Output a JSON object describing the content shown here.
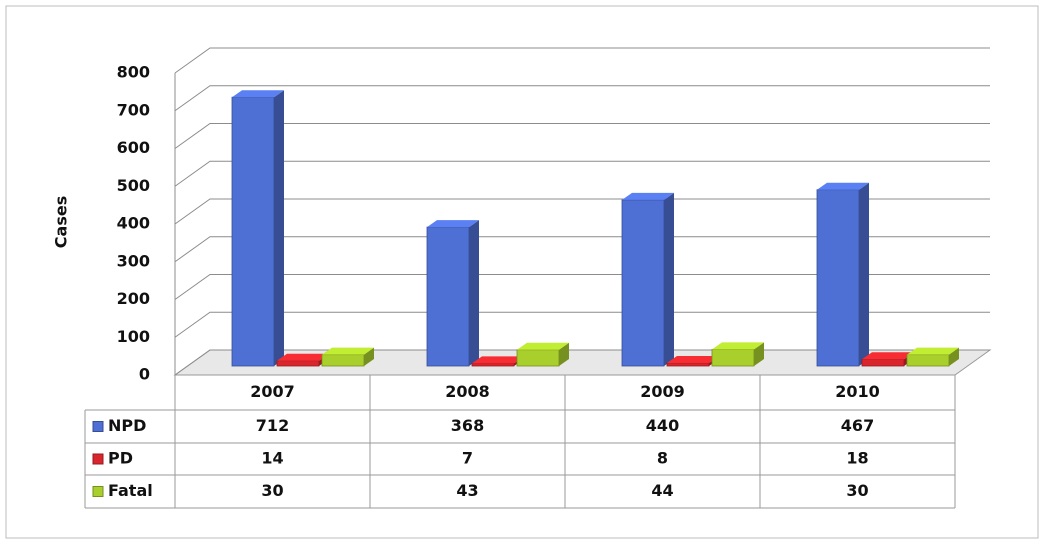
{
  "chart_data": {
    "type": "bar3d",
    "y_label": "Cases",
    "categories": [
      "2007",
      "2008",
      "2009",
      "2010"
    ],
    "series": [
      {
        "name": "NPD",
        "color": "#4e6fd4",
        "values": [
          712,
          368,
          440,
          467
        ]
      },
      {
        "name": "PD",
        "color": "#d8262c",
        "values": [
          14,
          7,
          8,
          18
        ]
      },
      {
        "name": "Fatal",
        "color": "#a8cf2c",
        "values": [
          30,
          43,
          44,
          30
        ]
      }
    ],
    "ylim": [
      0,
      800
    ],
    "yticks": [
      0,
      100,
      200,
      300,
      400,
      500,
      600,
      700,
      800
    ],
    "grid": true,
    "data_table": true
  }
}
